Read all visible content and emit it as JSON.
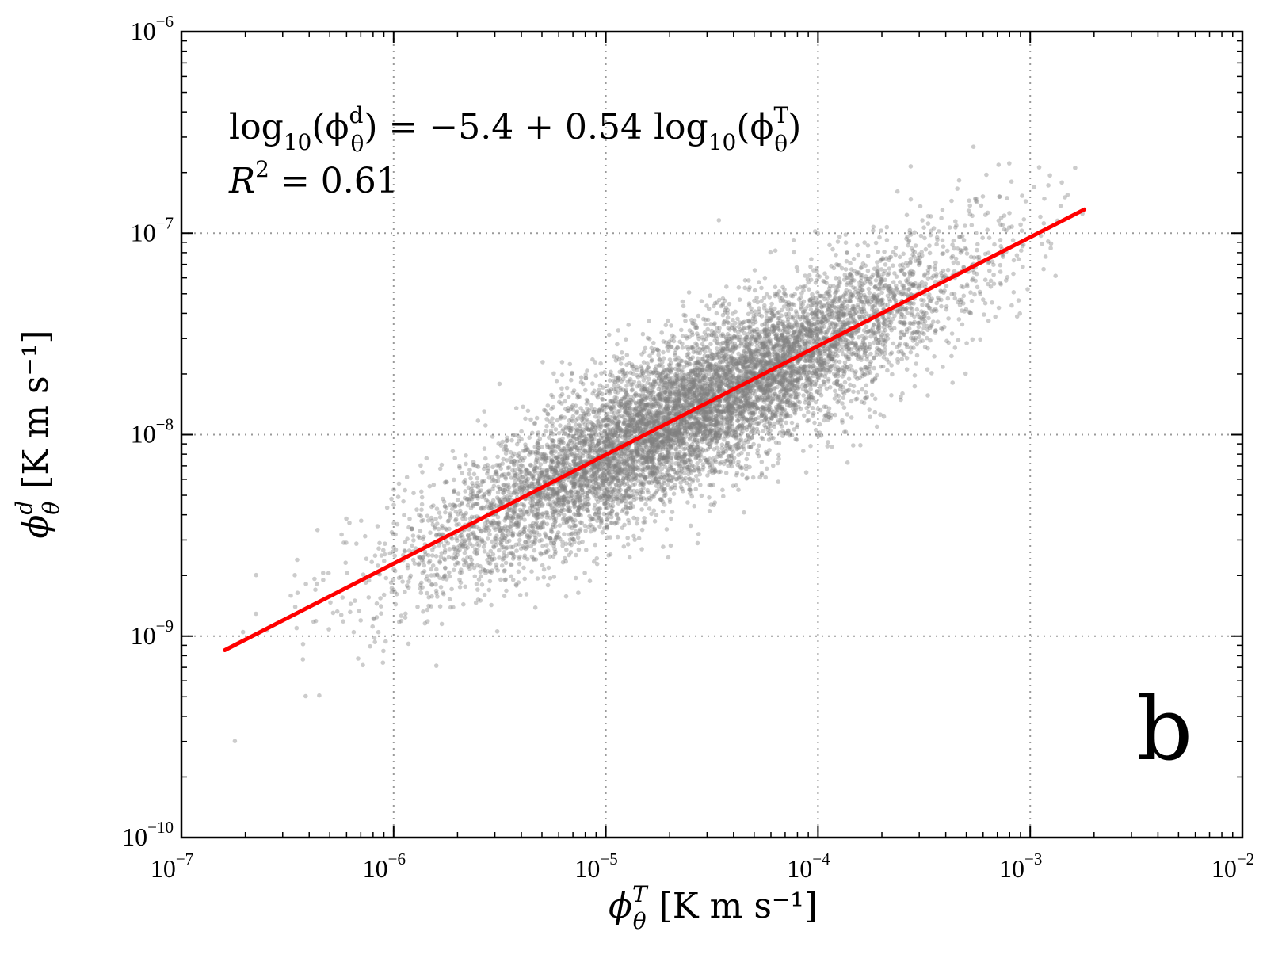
{
  "chart_data": {
    "type": "scatter",
    "xscale": "log",
    "yscale": "log",
    "xlim": [
      1e-07,
      0.01
    ],
    "ylim": [
      1e-10,
      1e-06
    ],
    "grid": true,
    "x_ticks": [
      {
        "base": "10",
        "exp": "−7"
      },
      {
        "base": "10",
        "exp": "−6"
      },
      {
        "base": "10",
        "exp": "−5"
      },
      {
        "base": "10",
        "exp": "−4"
      },
      {
        "base": "10",
        "exp": "−3"
      },
      {
        "base": "10",
        "exp": "−2"
      }
    ],
    "y_ticks": [
      {
        "base": "10",
        "exp": "−10"
      },
      {
        "base": "10",
        "exp": "−9"
      },
      {
        "base": "10",
        "exp": "−8"
      },
      {
        "base": "10",
        "exp": "−7"
      },
      {
        "base": "10",
        "exp": "−6"
      }
    ],
    "xlabel": {
      "main": "ϕ",
      "sup": "T",
      "sub": "θ",
      "unit": "[K m s⁻¹]"
    },
    "ylabel": {
      "main": "ϕ",
      "sup": "d",
      "sub": "θ",
      "unit": "[K m s⁻¹]"
    },
    "equation": {
      "line1_prefix": "log",
      "log_sub": "10",
      "open": "(ϕ",
      "sup1": "d",
      "sub1": "θ",
      "middle": ") = −5.4 + 0.54 log",
      "log_sub2": "10",
      "open2": "(ϕ",
      "sup2": "T",
      "sub2": "θ",
      "close": ")",
      "r2_label": "R",
      "r2_sup": "2",
      "r2_value": " = 0.61"
    },
    "fit": {
      "intercept": -5.4,
      "slope": 0.54,
      "x_range": [
        1.6e-07,
        0.0018
      ],
      "color": "#ff0000",
      "r_squared": 0.61
    },
    "scatter_cloud": {
      "n_points": 9000,
      "x_log_mean": -4.6,
      "x_log_sd": 0.62,
      "y_residual_sd": 0.19,
      "color": "#808080",
      "seed": 7
    },
    "panel_label": "b"
  }
}
